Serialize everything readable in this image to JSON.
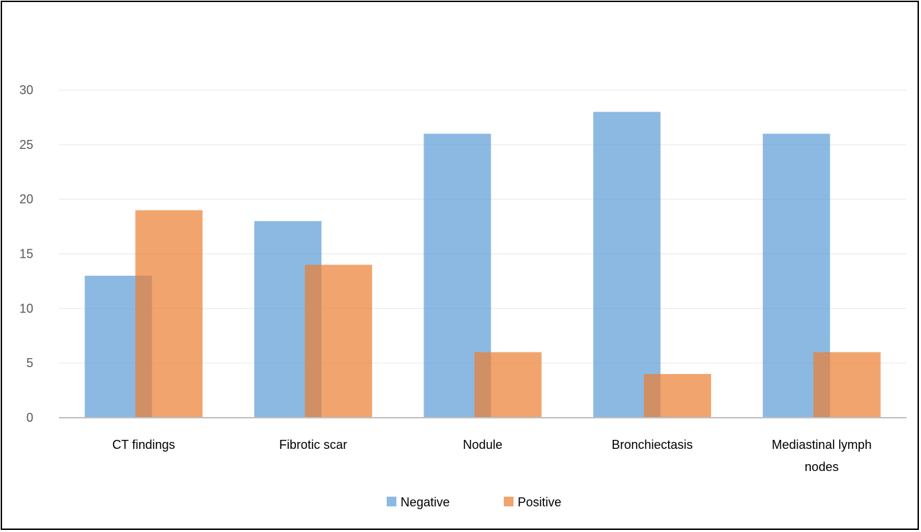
{
  "chart_data": {
    "type": "bar",
    "categories": [
      "CT findings",
      "Fibrotic scar",
      "Nodule",
      "Bronchiectasis",
      "Mediastinal lymph nodes"
    ],
    "series": [
      {
        "name": "Negative",
        "values": [
          13,
          18,
          26,
          28,
          26
        ],
        "color": "#5B9BD5"
      },
      {
        "name": "Positive",
        "values": [
          19,
          14,
          6,
          4,
          6
        ],
        "color": "#ED7D31"
      }
    ],
    "ylim": [
      0,
      30
    ],
    "yticks": [
      0,
      5,
      10,
      15,
      20,
      25,
      30
    ],
    "title": "",
    "xlabel": "",
    "ylabel": "",
    "grid": true,
    "legend_position": "bottom",
    "bar_overlap": true
  }
}
